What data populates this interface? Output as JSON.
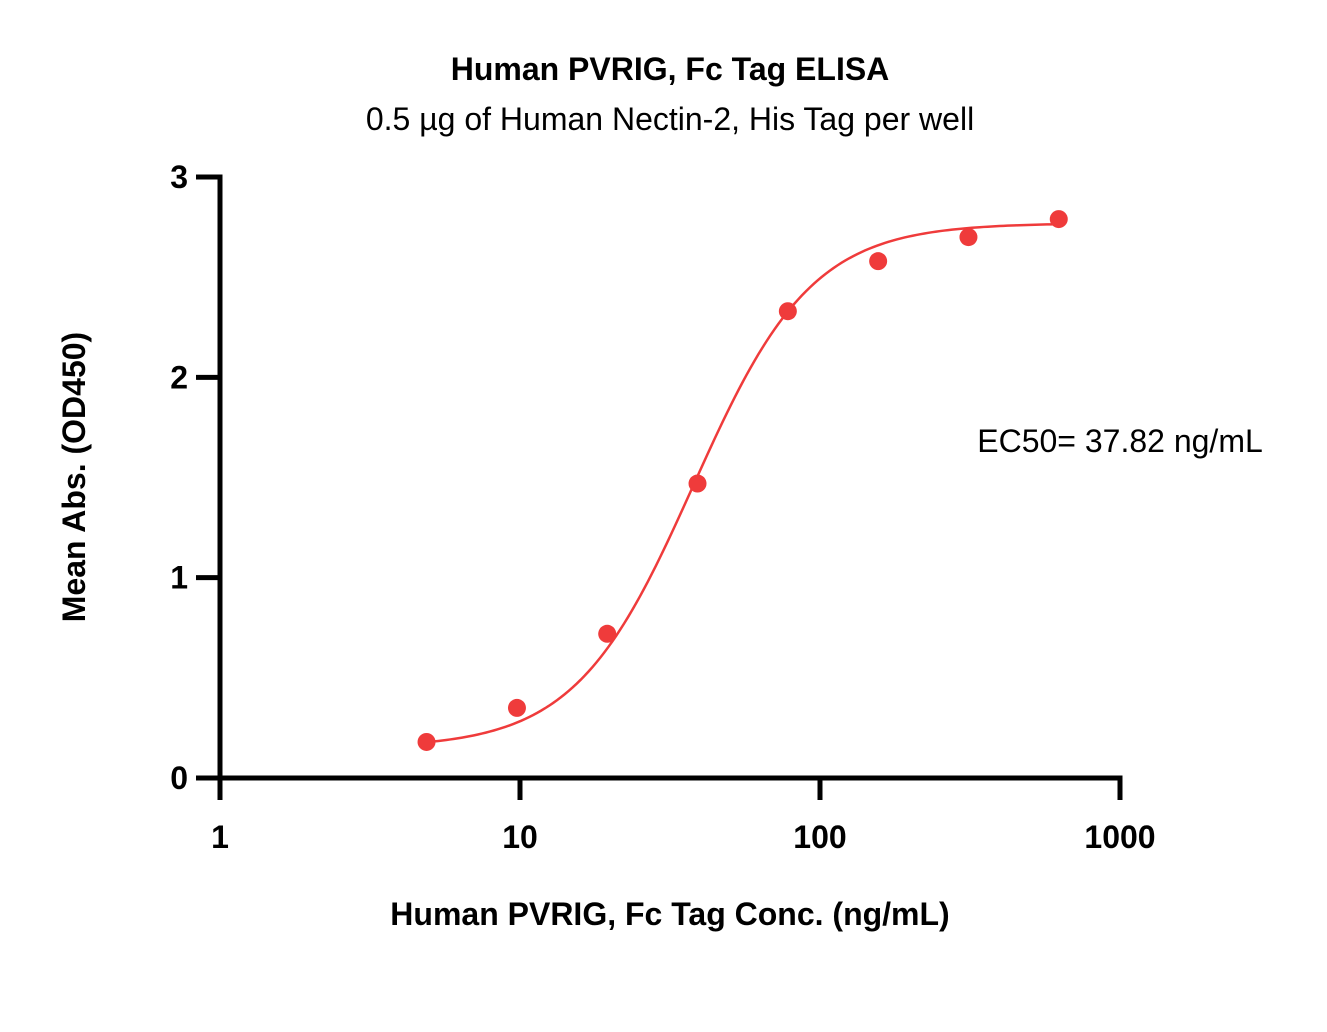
{
  "chart_data": {
    "type": "scatter",
    "title": "Human PVRIG, Fc Tag ELISA",
    "subtitle": "0.5 µg of Human Nectin-2, His Tag per well",
    "xlabel": "Human PVRIG, Fc Tag Conc. (ng/mL)",
    "ylabel": "Mean Abs. (OD450)",
    "xscale": "log",
    "xlim": [
      1,
      1000
    ],
    "ylim": [
      0,
      3
    ],
    "xticks": [
      1,
      10,
      100,
      1000
    ],
    "xtick_labels": [
      "1",
      "10",
      "100",
      "1000"
    ],
    "yticks": [
      0,
      1,
      2,
      3
    ],
    "ytick_labels": [
      "0",
      "1",
      "2",
      "3"
    ],
    "series": [
      {
        "name": "Human PVRIG, Fc Tag",
        "color": "#ef3b3b",
        "x": [
          4.88,
          9.77,
          19.53,
          39.06,
          78.13,
          156.25,
          312.5,
          625
        ],
        "y": [
          0.18,
          0.35,
          0.72,
          1.47,
          2.33,
          2.58,
          2.7,
          2.79
        ]
      }
    ],
    "fit": {
      "type": "4PL",
      "color": "#ef3b3b",
      "bottom": 0.15,
      "top": 2.77,
      "ec50": 37.82,
      "hill": 2.2,
      "x_range": [
        4.88,
        625
      ]
    },
    "annotation": "EC50= 37.82 ng/mL",
    "grid": false,
    "legend": "none"
  }
}
